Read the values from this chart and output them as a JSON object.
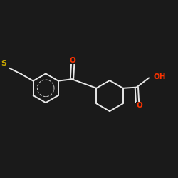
{
  "background_color": "#1a1a1a",
  "bond_color": "#e8e8e8",
  "atom_colors": {
    "S": "#ccaa00",
    "O": "#ff3300",
    "C": "#e8e8e8"
  },
  "figsize": [
    2.5,
    2.5
  ],
  "dpi": 100
}
